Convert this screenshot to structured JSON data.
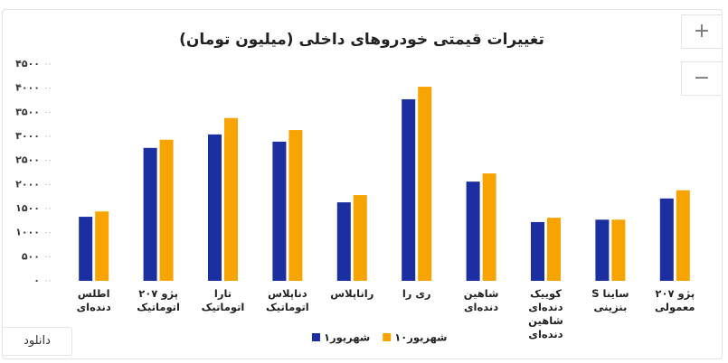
{
  "chart_data": {
    "type": "bar",
    "title": "تغییرات قیمتی خودروهای داخلی (میلیون تومان)",
    "categories": [
      "اطلس دنده‌ای",
      "پژو ۲۰۷ اتوماتیک",
      "تارا اتوماتیک",
      "دناپلاس اتوماتیک",
      "راناپلاس",
      "ری را",
      "شاهین دنده‌ای",
      "کوییک دنده‌ای شاهین دنده‌ای",
      "ساینا S بنزینی",
      "پژو ۲۰۷ معمولی"
    ],
    "series": [
      {
        "name": "۱شهریور",
        "color": "#1b2fa0",
        "values": [
          1330,
          2760,
          3040,
          2890,
          1630,
          3770,
          2060,
          1220,
          1270,
          1710
        ]
      },
      {
        "name": "۱۰شهریور",
        "color": "#f7a400",
        "values": [
          1440,
          2930,
          3380,
          3130,
          1780,
          4030,
          2230,
          1310,
          1270,
          1880
        ]
      }
    ],
    "ylim": [
      0,
      4500
    ],
    "yticks": [
      {
        "value": 0,
        "label": "۰"
      },
      {
        "value": 500,
        "label": "۵۰۰"
      },
      {
        "value": 1000,
        "label": "۱۰۰۰"
      },
      {
        "value": 1500,
        "label": "۱۵۰۰"
      },
      {
        "value": 2000,
        "label": "۲۰۰۰"
      },
      {
        "value": 2500,
        "label": "۲۵۰۰"
      },
      {
        "value": 3000,
        "label": "۳۰۰۰"
      },
      {
        "value": 3500,
        "label": "۳۵۰۰"
      },
      {
        "value": 4000,
        "label": "۴۰۰۰"
      },
      {
        "value": 4500,
        "label": "۴۵۰۰"
      }
    ],
    "grid": true,
    "legend": "bottom"
  },
  "ui": {
    "zoom_in": "+",
    "zoom_out": "−",
    "download": "دانلود"
  }
}
